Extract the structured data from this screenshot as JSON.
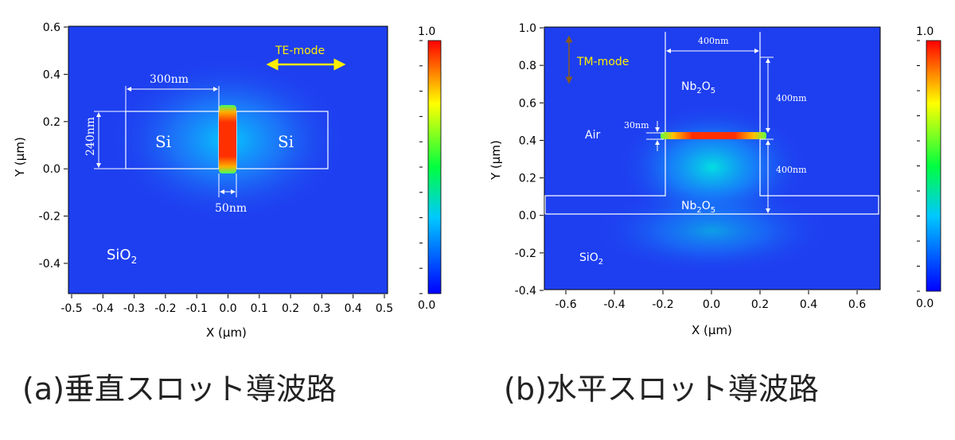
{
  "figure_a": {
    "caption": "(a)垂直スロット導波路",
    "xlabel": "X (μm)",
    "ylabel": "Y (μm)",
    "x_ticks": [
      "-0.5",
      "-0.4",
      "-0.3",
      "-0.2",
      "-0.1",
      "0.0",
      "0.1",
      "0.2",
      "0.3",
      "0.4",
      "0.5"
    ],
    "y_ticks": [
      "0.6",
      "0.4",
      "0.2",
      "0.0",
      "-0.2",
      "-0.4"
    ],
    "labels": {
      "si_left": "Si",
      "si_right": "Si",
      "sio2": "SiO",
      "sio2_sub": "2",
      "mode": "TE-mode",
      "dim_width": "300nm",
      "dim_height": "240nm",
      "dim_slot": "50nm"
    },
    "colorbar": {
      "max": "1.0",
      "min": "0.0"
    }
  },
  "figure_b": {
    "caption": "(b)水平スロット導波路",
    "xlabel": "X (μm)",
    "ylabel": "Y (μm)",
    "x_ticks": [
      "-0.6",
      "-0.4",
      "-0.2",
      "0.0",
      "0.2",
      "0.4",
      "0.6"
    ],
    "y_ticks": [
      "1.0",
      "0.8",
      "0.6",
      "0.4",
      "0.2",
      "0.0",
      "-0.2",
      "-0.4"
    ],
    "labels": {
      "nb_top": "Nb",
      "nb_top_sub1": "2",
      "nb_top_o": "O",
      "nb_top_sub2": "5",
      "nb_bot": "Nb",
      "nb_bot_sub1": "2",
      "nb_bot_o": "O",
      "nb_bot_sub2": "5",
      "air": "Air",
      "sio2": "SiO",
      "sio2_sub": "2",
      "mode": "TM-mode",
      "dim_width": "400nm",
      "dim_top": "400nm",
      "dim_bottom": "400nm",
      "dim_slot": "30nm"
    },
    "colorbar": {
      "max": "1.0",
      "min": "0.0"
    }
  },
  "colors": {
    "field_background": "#1e3ff0",
    "colorbar_stops": [
      "#0000ff",
      "#00ffff",
      "#00ff00",
      "#ffff00",
      "#ff0000"
    ]
  }
}
